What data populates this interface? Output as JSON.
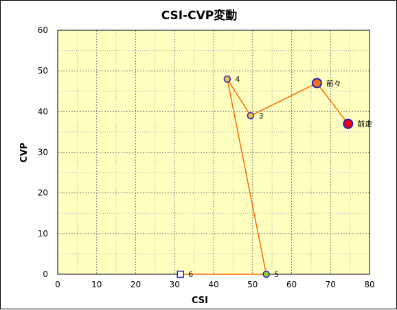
{
  "chart_data": {
    "type": "scatter",
    "title": "CSI-CVP変動",
    "xlabel": "CSI",
    "ylabel": "CVP",
    "xlim": [
      0,
      80
    ],
    "ylim": [
      0,
      60
    ],
    "xticks": [
      0,
      10,
      20,
      30,
      40,
      50,
      60,
      70,
      80
    ],
    "yticks": [
      0,
      10,
      20,
      30,
      40,
      50,
      60
    ],
    "grid": true,
    "plot_background": "#FFFFC0",
    "line_color": "#FF6600",
    "points": [
      {
        "label": "前走",
        "x": 74.5,
        "y": 37,
        "shape": "circle",
        "fill": "#E8000A",
        "stroke": "#2020C0",
        "size": "large"
      },
      {
        "label": "前々",
        "x": 66.5,
        "y": 47,
        "shape": "circle",
        "fill": "#F07020",
        "stroke": "#2020C0",
        "size": "large"
      },
      {
        "label": "3",
        "x": 49.5,
        "y": 39,
        "shape": "circle",
        "fill": "#F5C040",
        "stroke": "#2020C0",
        "size": "small"
      },
      {
        "label": "4",
        "x": 43.5,
        "y": 48,
        "shape": "circle",
        "fill": "#F5C040",
        "stroke": "#2020C0",
        "size": "small"
      },
      {
        "label": "5",
        "x": 53.5,
        "y": 0,
        "shape": "circle",
        "fill": "#9ACD32",
        "stroke": "#2020C0",
        "size": "small"
      },
      {
        "label": "6",
        "x": 31.5,
        "y": 0,
        "shape": "square",
        "fill": "#FFFFFF",
        "stroke": "#2020C0",
        "size": "small"
      }
    ]
  }
}
